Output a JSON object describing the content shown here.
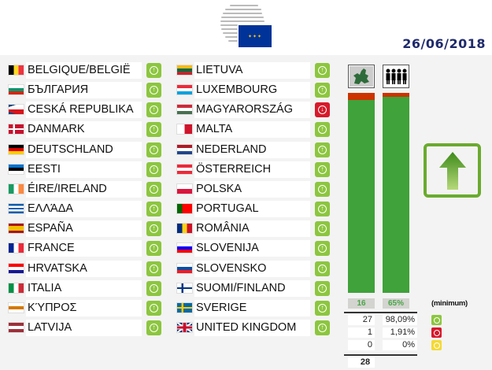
{
  "header": {
    "date": "26/06/2018",
    "logo_alt": "Council of the European Union"
  },
  "colors": {
    "yes": "#8cc63f",
    "no": "#d7182a",
    "abstain": "#f4d934",
    "bar_green": "#3fa23a",
    "bar_red": "#cc3300"
  },
  "countries": [
    {
      "name": "BELGIQUE/BELGIË",
      "vote": "yes",
      "flag": {
        "dir": "v",
        "colors": [
          "#000000",
          "#fdda24",
          "#ef3340"
        ]
      }
    },
    {
      "name": "БЪЛГАРИЯ",
      "vote": "yes",
      "flag": {
        "dir": "h",
        "colors": [
          "#ffffff",
          "#00966e",
          "#d62612"
        ]
      }
    },
    {
      "name": "CESKÁ REPUBLIKA",
      "vote": "yes",
      "flag": {
        "dir": "cz",
        "colors": [
          "#ffffff",
          "#d7141a",
          "#11457e"
        ]
      }
    },
    {
      "name": "DANMARK",
      "vote": "yes",
      "flag": {
        "dir": "nordic",
        "colors": [
          "#c8102e",
          "#ffffff"
        ]
      }
    },
    {
      "name": "DEUTSCHLAND",
      "vote": "yes",
      "flag": {
        "dir": "h",
        "colors": [
          "#000000",
          "#dd0000",
          "#ffce00"
        ]
      }
    },
    {
      "name": "EESTI",
      "vote": "yes",
      "flag": {
        "dir": "h",
        "colors": [
          "#0072ce",
          "#000000",
          "#ffffff"
        ]
      }
    },
    {
      "name": "ÉIRE/IRELAND",
      "vote": "yes",
      "flag": {
        "dir": "v",
        "colors": [
          "#169b62",
          "#ffffff",
          "#ff883e"
        ]
      }
    },
    {
      "name": "ΕΛΛΆΔΑ",
      "vote": "yes",
      "flag": {
        "dir": "h",
        "colors": [
          "#0d5eaf",
          "#ffffff",
          "#0d5eaf",
          "#ffffff",
          "#0d5eaf"
        ]
      }
    },
    {
      "name": "ESPAÑA",
      "vote": "yes",
      "flag": {
        "dir": "h",
        "colors": [
          "#aa151b",
          "#f1bf00",
          "#f1bf00",
          "#aa151b"
        ]
      }
    },
    {
      "name": "FRANCE",
      "vote": "yes",
      "flag": {
        "dir": "v",
        "colors": [
          "#002395",
          "#ffffff",
          "#ed2939"
        ]
      }
    },
    {
      "name": "HRVATSKA",
      "vote": "yes",
      "flag": {
        "dir": "h",
        "colors": [
          "#ff0000",
          "#ffffff",
          "#171796"
        ]
      }
    },
    {
      "name": "ITALIA",
      "vote": "yes",
      "flag": {
        "dir": "v",
        "colors": [
          "#009246",
          "#ffffff",
          "#ce2b37"
        ]
      }
    },
    {
      "name": "ΚΎΠΡΟΣ",
      "vote": "yes",
      "flag": {
        "dir": "h",
        "colors": [
          "#ffffff",
          "#d57800",
          "#ffffff"
        ]
      }
    },
    {
      "name": "LATVIJA",
      "vote": "yes",
      "flag": {
        "dir": "h",
        "colors": [
          "#9e3039",
          "#ffffff",
          "#9e3039"
        ]
      }
    },
    {
      "name": "LIETUVA",
      "vote": "yes",
      "flag": {
        "dir": "h",
        "colors": [
          "#fdb913",
          "#006a44",
          "#c1272d"
        ]
      }
    },
    {
      "name": "LUXEMBOURG",
      "vote": "yes",
      "flag": {
        "dir": "h",
        "colors": [
          "#ed2939",
          "#ffffff",
          "#00a1de"
        ]
      }
    },
    {
      "name": "MAGYARORSZÁG",
      "vote": "no",
      "flag": {
        "dir": "h",
        "colors": [
          "#ce2939",
          "#ffffff",
          "#477050"
        ]
      }
    },
    {
      "name": "MALTA",
      "vote": "yes",
      "flag": {
        "dir": "v",
        "colors": [
          "#ffffff",
          "#cf142b"
        ]
      }
    },
    {
      "name": "NEDERLAND",
      "vote": "yes",
      "flag": {
        "dir": "h",
        "colors": [
          "#ae1c28",
          "#ffffff",
          "#21468b"
        ]
      }
    },
    {
      "name": "ÖSTERREICH",
      "vote": "yes",
      "flag": {
        "dir": "h",
        "colors": [
          "#ed2939",
          "#ffffff",
          "#ed2939"
        ]
      }
    },
    {
      "name": "POLSKA",
      "vote": "yes",
      "flag": {
        "dir": "h",
        "colors": [
          "#ffffff",
          "#dc143c"
        ]
      }
    },
    {
      "name": "PORTUGAL",
      "vote": "yes",
      "flag": {
        "dir": "v",
        "colors": [
          "#006600",
          "#ff0000",
          "#ff0000"
        ]
      }
    },
    {
      "name": "ROMÂNIA",
      "vote": "yes",
      "flag": {
        "dir": "v",
        "colors": [
          "#002b7f",
          "#fcd116",
          "#ce1126"
        ]
      }
    },
    {
      "name": "SLOVENIJA",
      "vote": "yes",
      "flag": {
        "dir": "h",
        "colors": [
          "#ffffff",
          "#0000ff",
          "#ff0000"
        ]
      }
    },
    {
      "name": "SLOVENSKO",
      "vote": "yes",
      "flag": {
        "dir": "h",
        "colors": [
          "#ffffff",
          "#0b4ea2",
          "#ee1c25"
        ]
      }
    },
    {
      "name": "SUOMI/FINLAND",
      "vote": "yes",
      "flag": {
        "dir": "nordic",
        "colors": [
          "#ffffff",
          "#003580"
        ]
      }
    },
    {
      "name": "SVERIGE",
      "vote": "yes",
      "flag": {
        "dir": "nordic",
        "colors": [
          "#006aa7",
          "#fecc00"
        ]
      }
    },
    {
      "name": "UNITED KINGDOM",
      "vote": "yes",
      "flag": {
        "dir": "uk",
        "colors": [
          "#012169",
          "#ffffff",
          "#c8102e"
        ]
      }
    }
  ],
  "results": {
    "member_states_threshold": "16",
    "population_threshold": "65%",
    "minimum_label": "(minimum)",
    "member_states_share_yes": 0.9643,
    "population_share_yes": 0.9809,
    "rows": [
      {
        "type": "yes",
        "count": "27",
        "percent": "98,09%"
      },
      {
        "type": "no",
        "count": "1",
        "percent": "1,91%"
      },
      {
        "type": "abstain",
        "count": "0",
        "percent": "0%"
      }
    ],
    "total": "28",
    "outcome": "adopted"
  }
}
